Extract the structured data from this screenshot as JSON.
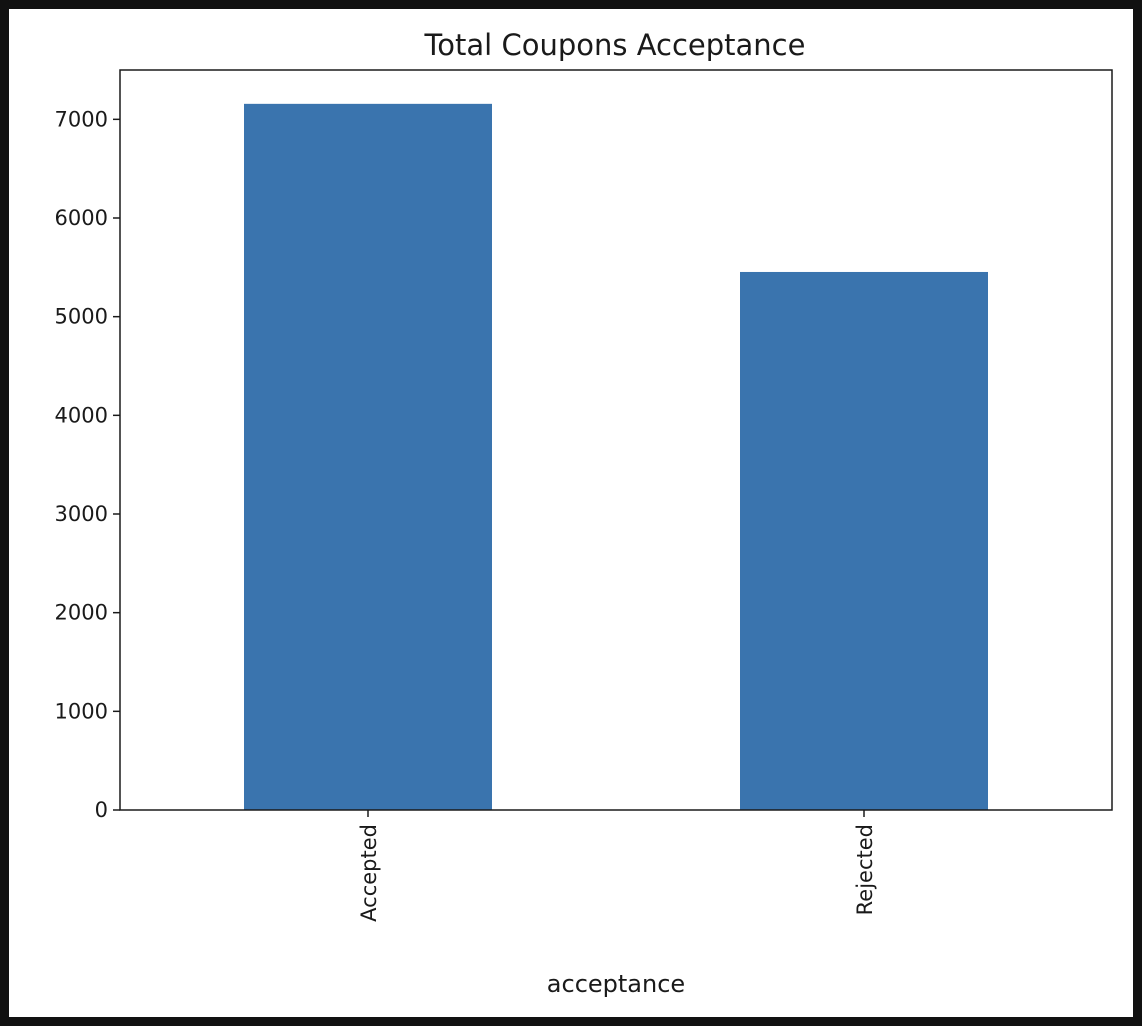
{
  "chart_data": {
    "type": "bar",
    "title": "Total Coupons Acceptance",
    "xlabel": "acceptance",
    "ylabel": "",
    "categories": [
      "Accepted",
      "Rejected"
    ],
    "values": [
      7157,
      5453
    ],
    "ylim": [
      0,
      7500
    ],
    "yticks": [
      0,
      1000,
      2000,
      3000,
      4000,
      5000,
      6000,
      7000
    ],
    "bar_color": "#3a74ae",
    "grid": false,
    "legend": "none"
  }
}
